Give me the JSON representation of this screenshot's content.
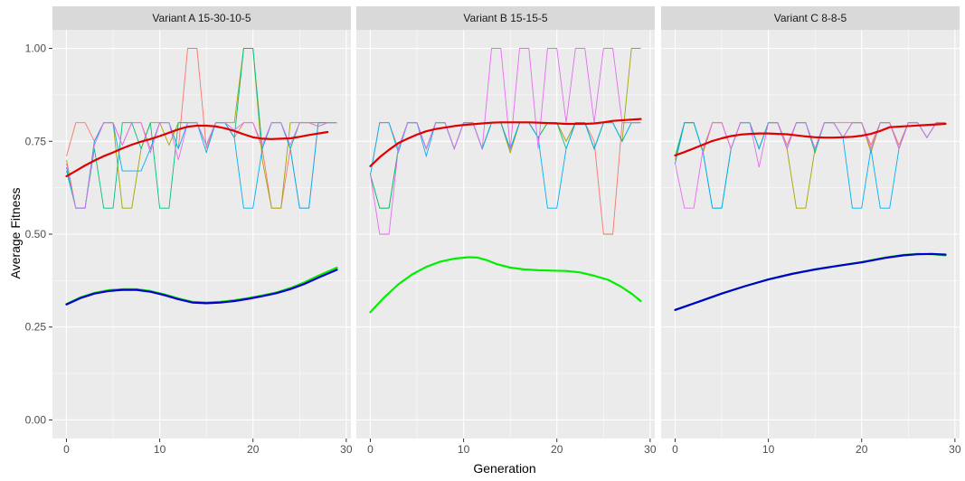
{
  "chart_data": {
    "type": "line",
    "xlabel": "Generation",
    "ylabel": "Average Fitness",
    "xlim": [
      -1.5,
      30.5
    ],
    "ylim": [
      -0.05,
      1.05
    ],
    "x_ticks": [
      0,
      10,
      20,
      30
    ],
    "x_tick_labels": [
      "0",
      "10",
      "20",
      "30"
    ],
    "y_ticks": [
      0,
      0.25,
      0.5,
      0.75,
      1.0
    ],
    "y_tick_labels": [
      "0.00",
      "0.25",
      "0.50",
      "0.75",
      "1.00"
    ],
    "grid": true,
    "colors": {
      "panel_bg": "#ebebeb",
      "strip_bg": "#d9d9d9",
      "grid": "#ffffff",
      "run_colors": [
        "#F8766D",
        "#A3A500",
        "#00BF7D",
        "#00B0F6",
        "#E76BF3"
      ],
      "trend_red": "#e00000",
      "trend_green": "#00ee00",
      "trend_blue": "#0000cc"
    },
    "panels": [
      {
        "title": "Variant A 15-30-10-5",
        "runs": [
          {
            "color": "#F8766D",
            "values": [
              0.71,
              0.8,
              0.8,
              0.75,
              0.8,
              0.8,
              0.74,
              0.8,
              0.8,
              0.73,
              0.8,
              0.8,
              0.73,
              1.0,
              1.0,
              0.73,
              0.8,
              0.8,
              0.76,
              0.8,
              0.8,
              0.73,
              0.57,
              0.57,
              0.73,
              0.57,
              0.57,
              0.8,
              0.8,
              0.8
            ]
          },
          {
            "color": "#A3A500",
            "values": [
              0.7,
              0.57,
              0.57,
              0.75,
              0.8,
              0.8,
              0.57,
              0.57,
              0.73,
              0.8,
              0.8,
              0.74,
              0.8,
              0.8,
              0.8,
              0.74,
              0.8,
              0.8,
              0.8,
              1.0,
              1.0,
              0.7,
              0.57,
              0.57,
              0.8,
              0.8,
              0.8,
              0.79,
              0.8,
              0.8
            ]
          },
          {
            "color": "#00BF7D",
            "values": [
              0.67,
              0.57,
              0.57,
              0.73,
              0.57,
              0.57,
              0.8,
              0.8,
              0.73,
              0.8,
              0.57,
              0.57,
              0.8,
              0.8,
              0.8,
              0.74,
              0.8,
              0.8,
              0.76,
              1.0,
              1.0,
              0.73,
              0.8,
              0.8,
              0.73,
              0.8,
              0.8,
              0.8,
              0.8,
              0.8
            ]
          },
          {
            "color": "#00B0F6",
            "values": [
              0.68,
              0.57,
              0.57,
              0.75,
              0.8,
              0.8,
              0.67,
              0.67,
              0.67,
              0.73,
              0.8,
              0.8,
              0.73,
              0.8,
              0.8,
              0.72,
              0.8,
              0.8,
              0.76,
              0.57,
              0.57,
              0.73,
              0.8,
              0.8,
              0.73,
              0.57,
              0.57,
              0.8,
              0.8,
              0.8
            ]
          },
          {
            "color": "#E76BF3",
            "values": [
              0.69,
              0.57,
              0.57,
              0.74,
              0.8,
              0.8,
              0.74,
              0.8,
              0.8,
              0.72,
              0.8,
              0.8,
              0.7,
              0.8,
              0.8,
              0.74,
              0.8,
              0.8,
              0.78,
              0.8,
              0.8,
              0.74,
              0.8,
              0.8,
              0.74,
              0.8,
              0.8,
              0.79,
              0.8,
              0.8
            ]
          }
        ],
        "trends": [
          {
            "color": "#e00000",
            "values": [
              0.656,
              0.67,
              0.685,
              0.698,
              0.71,
              0.72,
              0.731,
              0.741,
              0.749,
              0.756,
              0.764,
              0.773,
              0.782,
              0.789,
              0.792,
              0.792,
              0.79,
              0.785,
              0.778,
              0.769,
              0.761,
              0.757,
              0.756,
              0.757,
              0.758,
              0.762,
              0.767,
              0.775
            ]
          },
          {
            "color": "#00ee00",
            "values": [
              0.312,
              0.33,
              0.342,
              0.349,
              0.352,
              0.352,
              0.347,
              0.338,
              0.327,
              0.318,
              0.316,
              0.318,
              0.322,
              0.328,
              0.335,
              0.343,
              0.355,
              0.37,
              0.388,
              0.41
            ]
          },
          {
            "color": "#0000cc",
            "values": [
              0.311,
              0.328,
              0.34,
              0.347,
              0.35,
              0.35,
              0.345,
              0.336,
              0.325,
              0.316,
              0.314,
              0.316,
              0.32,
              0.326,
              0.333,
              0.341,
              0.352,
              0.366,
              0.383,
              0.404
            ]
          }
        ],
        "trend_x": {
          "red": [
            0,
            1,
            2,
            3,
            4,
            5,
            6,
            7,
            8,
            9,
            10,
            11,
            12,
            13,
            14,
            15,
            16,
            17,
            18,
            19,
            20,
            21,
            22,
            23,
            24,
            25,
            26,
            28
          ],
          "green": [
            0,
            1.5,
            3,
            4.5,
            6,
            7.5,
            9,
            10.5,
            12,
            13.5,
            15,
            16.5,
            18,
            19.5,
            21,
            22.5,
            24,
            25.5,
            27,
            29
          ],
          "blue": [
            0,
            1.5,
            3,
            4.5,
            6,
            7.5,
            9,
            10.5,
            12,
            13.5,
            15,
            16.5,
            18,
            19.5,
            21,
            22.5,
            24,
            25.5,
            27,
            29
          ]
        }
      },
      {
        "title": "Variant B 15-15-5",
        "runs": [
          {
            "color": "#F8766D",
            "values": [
              0.66,
              0.8,
              0.8,
              0.73,
              0.8,
              0.8,
              0.73,
              0.8,
              0.8,
              0.73,
              0.8,
              0.8,
              0.73,
              0.8,
              0.8,
              0.72,
              0.8,
              0.8,
              0.76,
              0.8,
              0.8,
              0.75,
              0.8,
              0.8,
              0.75,
              0.5,
              0.5,
              0.8,
              0.8,
              0.8
            ]
          },
          {
            "color": "#A3A500",
            "values": [
              0.66,
              0.57,
              0.57,
              0.73,
              0.8,
              0.8,
              0.73,
              0.8,
              0.8,
              0.73,
              0.8,
              0.8,
              0.73,
              0.8,
              0.8,
              0.72,
              0.8,
              0.8,
              0.76,
              0.8,
              0.8,
              0.75,
              0.8,
              0.8,
              0.73,
              0.8,
              0.8,
              0.75,
              1.0,
              1.0
            ]
          },
          {
            "color": "#00BF7D",
            "values": [
              0.66,
              0.57,
              0.57,
              0.73,
              0.8,
              0.8,
              0.73,
              0.8,
              0.8,
              0.73,
              0.8,
              0.8,
              0.73,
              0.8,
              0.8,
              0.73,
              0.8,
              0.8,
              0.76,
              0.8,
              0.8,
              0.73,
              0.8,
              0.8,
              0.73,
              0.8,
              0.8,
              0.75,
              0.8,
              0.8
            ]
          },
          {
            "color": "#00B0F6",
            "values": [
              0.66,
              0.8,
              0.8,
              0.72,
              0.8,
              0.8,
              0.71,
              0.8,
              0.8,
              0.73,
              0.8,
              0.8,
              0.73,
              0.8,
              0.8,
              0.73,
              0.8,
              0.8,
              0.76,
              0.57,
              0.57,
              0.73,
              0.8,
              0.8,
              0.73,
              0.8,
              0.8,
              0.75,
              0.8,
              0.8
            ]
          },
          {
            "color": "#E76BF3",
            "values": [
              0.66,
              0.5,
              0.5,
              0.73,
              0.8,
              0.8,
              0.73,
              0.8,
              0.8,
              0.73,
              0.8,
              0.8,
              0.73,
              1.0,
              1.0,
              0.73,
              1.0,
              1.0,
              0.73,
              1.0,
              1.0,
              0.8,
              1.0,
              1.0,
              0.8,
              1.0,
              1.0,
              0.8,
              0.8,
              0.8
            ]
          }
        ],
        "trends": [
          {
            "color": "#e00000",
            "values": [
              0.683,
              0.707,
              0.727,
              0.745,
              0.757,
              0.768,
              0.777,
              0.783,
              0.787,
              0.791,
              0.794,
              0.796,
              0.798,
              0.8,
              0.801,
              0.801,
              0.801,
              0.801,
              0.8,
              0.799,
              0.798,
              0.797,
              0.797,
              0.797,
              0.798,
              0.801,
              0.805,
              0.81
            ]
          },
          {
            "color": "#00ee00",
            "values": [
              0.29,
              0.33,
              0.365,
              0.392,
              0.412,
              0.426,
              0.434,
              0.438,
              0.437,
              0.43,
              0.42,
              0.41,
              0.405,
              0.403,
              0.402,
              0.401,
              0.397,
              0.388,
              0.377,
              0.36,
              0.34,
              0.32
            ]
          }
        ],
        "trend_x": {
          "red": [
            0,
            1,
            2,
            3,
            4,
            5,
            6,
            7,
            8,
            9,
            10,
            11,
            12,
            13,
            14,
            15,
            16,
            17,
            18,
            19,
            20,
            21,
            22,
            23,
            24,
            25,
            26,
            29
          ],
          "green": [
            0,
            1.5,
            3,
            4.5,
            6,
            7.5,
            9,
            10.5,
            11.5,
            12.5,
            13.5,
            15,
            16.5,
            18,
            19.5,
            21,
            22.5,
            24,
            25.5,
            26.8,
            28,
            29
          ]
        }
      },
      {
        "title": "Variant C 8-8-5",
        "runs": [
          {
            "color": "#F8766D",
            "values": [
              0.69,
              0.8,
              0.8,
              0.72,
              0.8,
              0.8,
              0.73,
              0.8,
              0.8,
              0.73,
              0.8,
              0.8,
              0.74,
              0.8,
              0.8,
              0.73,
              0.8,
              0.8,
              0.8,
              0.8,
              0.8,
              0.74,
              0.8,
              0.8,
              0.74,
              0.8,
              0.8,
              0.76,
              0.8,
              0.8
            ]
          },
          {
            "color": "#A3A500",
            "values": [
              0.7,
              0.8,
              0.8,
              0.72,
              0.8,
              0.8,
              0.73,
              0.8,
              0.8,
              0.73,
              0.8,
              0.8,
              0.73,
              0.57,
              0.57,
              0.73,
              0.8,
              0.8,
              0.76,
              0.8,
              0.8,
              0.72,
              0.8,
              0.8,
              0.73,
              0.8,
              0.8,
              0.76,
              0.8,
              0.8
            ]
          },
          {
            "color": "#00BF7D",
            "values": [
              0.71,
              0.8,
              0.8,
              0.72,
              0.57,
              0.57,
              0.73,
              0.8,
              0.8,
              0.73,
              0.8,
              0.8,
              0.73,
              0.8,
              0.8,
              0.72,
              0.8,
              0.8,
              0.76,
              0.8,
              0.8,
              0.73,
              0.8,
              0.8,
              0.73,
              0.8,
              0.8,
              0.76,
              0.8,
              0.8
            ]
          },
          {
            "color": "#00B0F6",
            "values": [
              0.69,
              0.8,
              0.8,
              0.72,
              0.57,
              0.57,
              0.73,
              0.8,
              0.8,
              0.73,
              0.8,
              0.8,
              0.73,
              0.8,
              0.8,
              0.73,
              0.8,
              0.8,
              0.76,
              0.57,
              0.57,
              0.73,
              0.57,
              0.57,
              0.73,
              0.8,
              0.8,
              0.76,
              0.8,
              0.8
            ]
          },
          {
            "color": "#E76BF3",
            "values": [
              0.69,
              0.57,
              0.57,
              0.73,
              0.8,
              0.8,
              0.73,
              0.8,
              0.8,
              0.68,
              0.8,
              0.8,
              0.73,
              0.8,
              0.8,
              0.73,
              0.8,
              0.8,
              0.76,
              0.8,
              0.8,
              0.73,
              0.8,
              0.8,
              0.73,
              0.8,
              0.8,
              0.76,
              0.8,
              0.8
            ]
          }
        ],
        "trends": [
          {
            "color": "#e00000",
            "values": [
              0.712,
              0.721,
              0.731,
              0.741,
              0.751,
              0.758,
              0.764,
              0.768,
              0.77,
              0.771,
              0.771,
              0.77,
              0.769,
              0.766,
              0.763,
              0.761,
              0.76,
              0.76,
              0.761,
              0.762,
              0.765,
              0.77,
              0.778,
              0.788,
              0.797
            ]
          },
          {
            "color": "#00ee00",
            "values": [
              0.296,
              0.318,
              0.34,
              0.36,
              0.378,
              0.393,
              0.405,
              0.415,
              0.425,
              0.437,
              0.444,
              0.447,
              0.446,
              0.443
            ]
          },
          {
            "color": "#0000cc",
            "values": [
              0.296,
              0.318,
              0.34,
              0.36,
              0.378,
              0.393,
              0.405,
              0.415,
              0.424,
              0.436,
              0.443,
              0.446,
              0.447,
              0.445
            ]
          }
        ],
        "trend_x": {
          "red": [
            0,
            1,
            2,
            3,
            4,
            5,
            6,
            7,
            8,
            9,
            10,
            11,
            12,
            13,
            14,
            15,
            16,
            17,
            18,
            19,
            20,
            21,
            22,
            23,
            29
          ],
          "green": [
            0,
            2.5,
            5,
            7.5,
            10,
            12.5,
            15,
            17.5,
            20,
            22.5,
            24.5,
            26,
            27.5,
            29
          ],
          "blue": [
            0,
            2.5,
            5,
            7.5,
            10,
            12.5,
            15,
            17.5,
            20,
            22.5,
            24.5,
            26,
            27.5,
            29
          ]
        }
      }
    ]
  }
}
